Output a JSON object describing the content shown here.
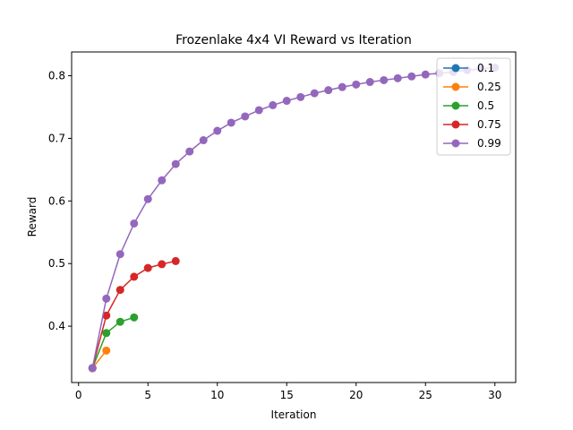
{
  "chart_data": {
    "type": "line",
    "title": "Frozenlake 4x4 VI Reward vs Iteration",
    "xlabel": "Iteration",
    "ylabel": "Reward",
    "xlim": [
      -0.5,
      31.5
    ],
    "ylim": [
      0.31,
      0.838
    ],
    "xticks": [
      0,
      5,
      10,
      15,
      20,
      25,
      30
    ],
    "xtick_labels": [
      "0",
      "5",
      "10",
      "15",
      "20",
      "25",
      "30"
    ],
    "yticks": [
      0.4,
      0.5,
      0.6,
      0.7,
      0.8
    ],
    "ytick_labels": [
      "0.4",
      "0.5",
      "0.6",
      "0.7",
      "0.8"
    ],
    "grid": false,
    "legend_position": "top-right",
    "series": [
      {
        "name": "0.1",
        "color": "#1f77b4",
        "x": [
          1
        ],
        "y": [
          0.333
        ]
      },
      {
        "name": "0.25",
        "color": "#ff7f0e",
        "x": [
          1,
          2
        ],
        "y": [
          0.333,
          0.361
        ]
      },
      {
        "name": "0.5",
        "color": "#2ca02c",
        "x": [
          1,
          2,
          3,
          4
        ],
        "y": [
          0.333,
          0.389,
          0.407,
          0.414
        ]
      },
      {
        "name": "0.75",
        "color": "#d62728",
        "x": [
          1,
          2,
          3,
          4,
          5,
          6,
          7
        ],
        "y": [
          0.333,
          0.417,
          0.458,
          0.479,
          0.493,
          0.499,
          0.504
        ]
      },
      {
        "name": "0.99",
        "color": "#9467bd",
        "x": [
          1,
          2,
          3,
          4,
          5,
          6,
          7,
          8,
          9,
          10,
          11,
          12,
          13,
          14,
          15,
          16,
          17,
          18,
          19,
          20,
          21,
          22,
          23,
          24,
          25,
          26,
          27,
          28,
          29,
          30
        ],
        "y": [
          0.333,
          0.444,
          0.515,
          0.564,
          0.603,
          0.633,
          0.659,
          0.679,
          0.697,
          0.712,
          0.725,
          0.735,
          0.745,
          0.753,
          0.76,
          0.766,
          0.772,
          0.777,
          0.782,
          0.786,
          0.79,
          0.793,
          0.796,
          0.799,
          0.802,
          0.804,
          0.806,
          0.809,
          0.811,
          0.813
        ]
      }
    ]
  }
}
